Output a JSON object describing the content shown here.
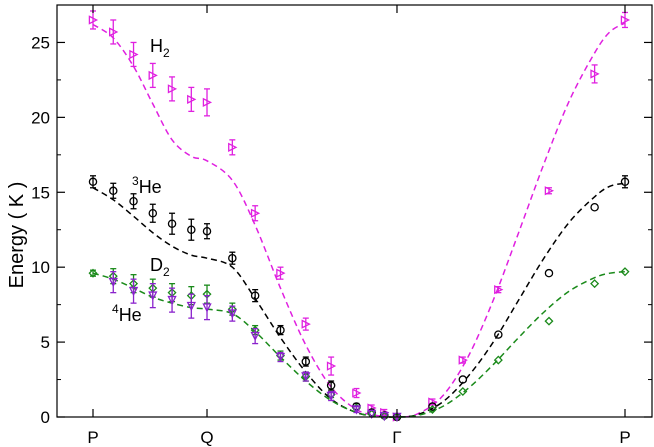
{
  "chart_data": {
    "type": "scatter",
    "title": "",
    "xlabel": "",
    "ylabel": "Energy   ( K )",
    "xlim": [
      0,
      1
    ],
    "ylim": [
      0,
      27.5
    ],
    "xticks": [
      {
        "value": 0.0,
        "label": "P"
      },
      {
        "value": 0.2143,
        "label": "Q"
      },
      {
        "value": 0.5714,
        "label": "Γ"
      },
      {
        "value": 1.0,
        "label": "P"
      }
    ],
    "yticks": [
      0,
      5,
      10,
      15,
      20,
      25
    ],
    "grid": false,
    "legend": "none",
    "series": [
      {
        "name": "H2",
        "label_main": "H",
        "label_sub": "2",
        "color": "#e020e0",
        "marker": "triangle-right",
        "points": [
          {
            "x": 0.0,
            "y": 26.5,
            "err": 0.6
          },
          {
            "x": 0.0381,
            "y": 25.7,
            "err": 0.8
          },
          {
            "x": 0.0762,
            "y": 24.2,
            "err": 0.8
          },
          {
            "x": 0.1124,
            "y": 22.8,
            "err": 0.8
          },
          {
            "x": 0.1486,
            "y": 21.9,
            "err": 0.8
          },
          {
            "x": 0.1848,
            "y": 21.2,
            "err": 0.8
          },
          {
            "x": 0.2143,
            "y": 21.0,
            "err": 0.9
          },
          {
            "x": 0.2619,
            "y": 18.0,
            "err": 0.5
          },
          {
            "x": 0.3048,
            "y": 13.6,
            "err": 0.5
          },
          {
            "x": 0.3524,
            "y": 9.6,
            "err": 0.4
          },
          {
            "x": 0.4,
            "y": 6.2,
            "err": 0.4
          },
          {
            "x": 0.4476,
            "y": 3.4,
            "err": 0.6
          },
          {
            "x": 0.4952,
            "y": 1.6,
            "err": 0.3
          },
          {
            "x": 0.5238,
            "y": 0.6,
            "err": 0.2
          },
          {
            "x": 0.5476,
            "y": 0.3,
            "err": 0.2
          },
          {
            "x": 0.5714,
            "y": 0.0,
            "err": 0.2
          },
          {
            "x": 0.6381,
            "y": 1.0,
            "err": 0.2
          },
          {
            "x": 0.6952,
            "y": 3.8,
            "err": 0.2
          },
          {
            "x": 0.7619,
            "y": 8.5,
            "err": 0.2
          },
          {
            "x": 0.8571,
            "y": 15.1,
            "err": 0.2
          },
          {
            "x": 0.9429,
            "y": 22.9,
            "err": 0.6
          },
          {
            "x": 1.0,
            "y": 26.5,
            "err": 0.5
          }
        ],
        "fit": [
          {
            "x": 0.0,
            "y": 26.2
          },
          {
            "x": 0.0381,
            "y": 25.3
          },
          {
            "x": 0.0762,
            "y": 23.4
          },
          {
            "x": 0.1124,
            "y": 20.9
          },
          {
            "x": 0.1486,
            "y": 18.5
          },
          {
            "x": 0.1848,
            "y": 17.4
          },
          {
            "x": 0.2143,
            "y": 17.1
          },
          {
            "x": 0.2619,
            "y": 15.8
          },
          {
            "x": 0.3048,
            "y": 12.8
          },
          {
            "x": 0.3524,
            "y": 8.6
          },
          {
            "x": 0.4,
            "y": 4.8
          },
          {
            "x": 0.4476,
            "y": 2.0
          },
          {
            "x": 0.4952,
            "y": 0.5
          },
          {
            "x": 0.5333,
            "y": 0.1
          },
          {
            "x": 0.5714,
            "y": 0.0
          },
          {
            "x": 0.6095,
            "y": 0.2
          },
          {
            "x": 0.6571,
            "y": 1.4
          },
          {
            "x": 0.7048,
            "y": 4.0
          },
          {
            "x": 0.7524,
            "y": 7.8
          },
          {
            "x": 0.8,
            "y": 12.3
          },
          {
            "x": 0.8476,
            "y": 16.9
          },
          {
            "x": 0.8952,
            "y": 21.1
          },
          {
            "x": 0.9429,
            "y": 24.3
          },
          {
            "x": 0.9714,
            "y": 25.7
          },
          {
            "x": 1.0,
            "y": 26.3
          }
        ]
      },
      {
        "name": "3He",
        "label_main": "He",
        "label_sup": "3",
        "color": "#000000",
        "marker": "circle",
        "points": [
          {
            "x": 0.0,
            "y": 15.7,
            "err": 0.4
          },
          {
            "x": 0.0381,
            "y": 15.1,
            "err": 0.5
          },
          {
            "x": 0.0762,
            "y": 14.4,
            "err": 0.5
          },
          {
            "x": 0.1124,
            "y": 13.6,
            "err": 0.6
          },
          {
            "x": 0.1486,
            "y": 12.9,
            "err": 0.7
          },
          {
            "x": 0.1848,
            "y": 12.5,
            "err": 0.7
          },
          {
            "x": 0.2143,
            "y": 12.4,
            "err": 0.5
          },
          {
            "x": 0.2619,
            "y": 10.6,
            "err": 0.4
          },
          {
            "x": 0.3048,
            "y": 8.1,
            "err": 0.4
          },
          {
            "x": 0.3524,
            "y": 5.8,
            "err": 0.3
          },
          {
            "x": 0.4,
            "y": 3.7,
            "err": 0.3
          },
          {
            "x": 0.4476,
            "y": 2.1,
            "err": 0.3
          },
          {
            "x": 0.4952,
            "y": 0.7,
            "err": 0.2
          },
          {
            "x": 0.5238,
            "y": 0.3,
            "err": 0.1
          },
          {
            "x": 0.5476,
            "y": 0.1,
            "err": 0.1
          },
          {
            "x": 0.5714,
            "y": 0.0,
            "err": 0.1
          },
          {
            "x": 0.6381,
            "y": 0.7,
            "err": 0.1
          },
          {
            "x": 0.6952,
            "y": 2.5,
            "err": 0.1
          },
          {
            "x": 0.7619,
            "y": 5.5,
            "err": 0.1
          },
          {
            "x": 0.8571,
            "y": 9.6,
            "err": 0.1
          },
          {
            "x": 0.9429,
            "y": 14.0,
            "err": 0.1
          },
          {
            "x": 1.0,
            "y": 15.7,
            "err": 0.4
          }
        ],
        "fit": [
          {
            "x": 0.0,
            "y": 15.3
          },
          {
            "x": 0.0381,
            "y": 14.5
          },
          {
            "x": 0.0762,
            "y": 13.4
          },
          {
            "x": 0.1124,
            "y": 12.3
          },
          {
            "x": 0.1486,
            "y": 11.4
          },
          {
            "x": 0.1848,
            "y": 10.8
          },
          {
            "x": 0.2143,
            "y": 10.6
          },
          {
            "x": 0.2619,
            "y": 10.0
          },
          {
            "x": 0.3048,
            "y": 7.9
          },
          {
            "x": 0.3524,
            "y": 5.3
          },
          {
            "x": 0.4,
            "y": 3.0
          },
          {
            "x": 0.4476,
            "y": 1.2
          },
          {
            "x": 0.4952,
            "y": 0.3
          },
          {
            "x": 0.5333,
            "y": 0.05
          },
          {
            "x": 0.5714,
            "y": 0.0
          },
          {
            "x": 0.6095,
            "y": 0.15
          },
          {
            "x": 0.6571,
            "y": 1.0
          },
          {
            "x": 0.7048,
            "y": 2.7
          },
          {
            "x": 0.7524,
            "y": 5.0
          },
          {
            "x": 0.8,
            "y": 7.8
          },
          {
            "x": 0.8476,
            "y": 10.6
          },
          {
            "x": 0.8952,
            "y": 13.0
          },
          {
            "x": 0.9429,
            "y": 14.7
          },
          {
            "x": 0.9714,
            "y": 15.4
          },
          {
            "x": 1.0,
            "y": 15.6
          }
        ]
      },
      {
        "name": "D2",
        "label_main": "D",
        "label_sub": "2",
        "color": "#1a8a1a",
        "marker": "diamond",
        "points": [
          {
            "x": 0.0,
            "y": 9.6,
            "err": 0.2
          },
          {
            "x": 0.0381,
            "y": 9.4,
            "err": 0.5
          },
          {
            "x": 0.0762,
            "y": 8.9,
            "err": 0.6
          },
          {
            "x": 0.1124,
            "y": 8.6,
            "err": 0.6
          },
          {
            "x": 0.1486,
            "y": 8.3,
            "err": 0.6
          },
          {
            "x": 0.1848,
            "y": 8.1,
            "err": 0.6
          },
          {
            "x": 0.2143,
            "y": 8.2,
            "err": 0.6
          },
          {
            "x": 0.2619,
            "y": 7.2,
            "err": 0.4
          },
          {
            "x": 0.3048,
            "y": 5.8,
            "err": 0.3
          },
          {
            "x": 0.3524,
            "y": 4.1,
            "err": 0.3
          },
          {
            "x": 0.4,
            "y": 2.7,
            "err": 0.3
          },
          {
            "x": 0.4476,
            "y": 1.5,
            "err": 0.2
          },
          {
            "x": 0.4952,
            "y": 0.6,
            "err": 0.1
          },
          {
            "x": 0.5238,
            "y": 0.2,
            "err": 0.1
          },
          {
            "x": 0.5476,
            "y": 0.05,
            "err": 0.1
          },
          {
            "x": 0.5714,
            "y": 0.0,
            "err": 0.1
          },
          {
            "x": 0.6381,
            "y": 0.5,
            "err": 0.1
          },
          {
            "x": 0.6952,
            "y": 1.7,
            "err": 0.1
          },
          {
            "x": 0.7619,
            "y": 3.8,
            "err": 0.1
          },
          {
            "x": 0.8571,
            "y": 6.4,
            "err": 0.1
          },
          {
            "x": 0.9429,
            "y": 8.9,
            "err": 0.1
          },
          {
            "x": 1.0,
            "y": 9.7,
            "err": 0.1
          }
        ],
        "fit": [
          {
            "x": 0.0,
            "y": 9.6
          },
          {
            "x": 0.0381,
            "y": 9.2
          },
          {
            "x": 0.0762,
            "y": 8.6
          },
          {
            "x": 0.1124,
            "y": 8.0
          },
          {
            "x": 0.1486,
            "y": 7.6
          },
          {
            "x": 0.1848,
            "y": 7.3
          },
          {
            "x": 0.2143,
            "y": 7.2
          },
          {
            "x": 0.2619,
            "y": 6.9
          },
          {
            "x": 0.3048,
            "y": 5.7
          },
          {
            "x": 0.3524,
            "y": 4.0
          },
          {
            "x": 0.4,
            "y": 2.4
          },
          {
            "x": 0.4476,
            "y": 1.1
          },
          {
            "x": 0.4952,
            "y": 0.3
          },
          {
            "x": 0.5333,
            "y": 0.05
          },
          {
            "x": 0.5714,
            "y": 0.0
          },
          {
            "x": 0.6095,
            "y": 0.1
          },
          {
            "x": 0.6571,
            "y": 0.7
          },
          {
            "x": 0.7048,
            "y": 1.9
          },
          {
            "x": 0.7524,
            "y": 3.5
          },
          {
            "x": 0.8,
            "y": 5.3
          },
          {
            "x": 0.8476,
            "y": 7.0
          },
          {
            "x": 0.8952,
            "y": 8.4
          },
          {
            "x": 0.9429,
            "y": 9.3
          },
          {
            "x": 0.9714,
            "y": 9.6
          },
          {
            "x": 1.0,
            "y": 9.7
          }
        ]
      },
      {
        "name": "4He",
        "label_main": "He",
        "label_sup": "4",
        "color": "#8a22cc",
        "marker": "triangle-down",
        "points": [
          {
            "x": 0.0381,
            "y": 9.0,
            "err": 0.7
          },
          {
            "x": 0.0762,
            "y": 8.4,
            "err": 0.8
          },
          {
            "x": 0.1124,
            "y": 8.1,
            "err": 0.8
          },
          {
            "x": 0.1486,
            "y": 7.8,
            "err": 0.8
          },
          {
            "x": 0.1848,
            "y": 7.4,
            "err": 0.8
          },
          {
            "x": 0.2143,
            "y": 7.3,
            "err": 0.8
          },
          {
            "x": 0.2619,
            "y": 6.9,
            "err": 0.5
          },
          {
            "x": 0.3048,
            "y": 5.4,
            "err": 0.5
          },
          {
            "x": 0.3524,
            "y": 4.0,
            "err": 0.3
          },
          {
            "x": 0.4,
            "y": 2.7,
            "err": 0.3
          },
          {
            "x": 0.4476,
            "y": 1.4,
            "err": 0.3
          },
          {
            "x": 0.4952,
            "y": 0.5,
            "err": 0.2
          },
          {
            "x": 0.5238,
            "y": 0.2,
            "err": 0.1
          },
          {
            "x": 0.5476,
            "y": 0.05,
            "err": 0.1
          },
          {
            "x": 0.5714,
            "y": 0.0,
            "err": 0.1
          }
        ]
      }
    ],
    "series_label_positions": {}
  }
}
